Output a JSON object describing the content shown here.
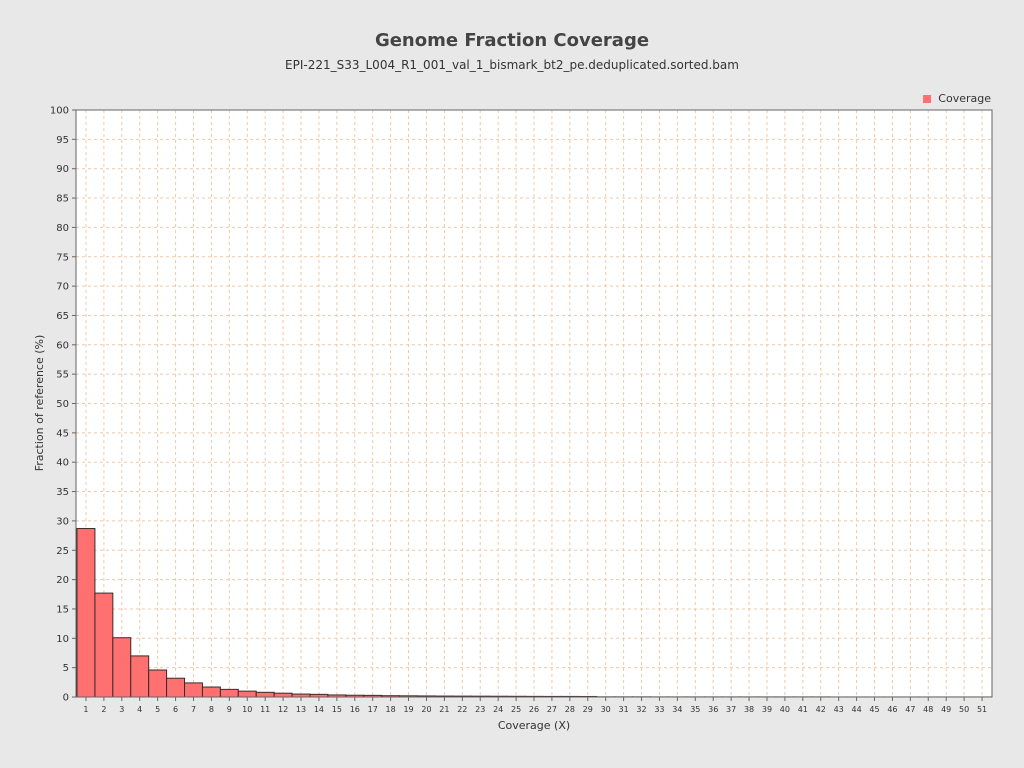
{
  "chart_data": {
    "type": "bar",
    "title": "Genome Fraction Coverage",
    "subtitle": "EPI-221_S33_L004_R1_001_val_1_bismark_bt2_pe.deduplicated.sorted.bam",
    "xlabel": "Coverage (X)",
    "ylabel": "Fraction of reference (%)",
    "ylim": [
      0,
      100
    ],
    "yticks": [
      0,
      5,
      10,
      15,
      20,
      25,
      30,
      35,
      40,
      45,
      50,
      55,
      60,
      65,
      70,
      75,
      80,
      85,
      90,
      95,
      100
    ],
    "grid": true,
    "legend_position": "top-right",
    "categories": [
      "1",
      "2",
      "3",
      "4",
      "5",
      "6",
      "7",
      "8",
      "9",
      "10",
      "11",
      "12",
      "13",
      "14",
      "15",
      "16",
      "17",
      "18",
      "19",
      "20",
      "21",
      "22",
      "23",
      "24",
      "25",
      "26",
      "27",
      "28",
      "29",
      "30",
      "31",
      "32",
      "33",
      "34",
      "35",
      "36",
      "37",
      "38",
      "39",
      "40",
      "41",
      "42",
      "43",
      "44",
      "45",
      "46",
      "47",
      "48",
      "49",
      "50",
      "51"
    ],
    "series": [
      {
        "name": "Coverage",
        "color": "#ff7070",
        "values": [
          28.7,
          17.7,
          10.1,
          7.0,
          4.6,
          3.2,
          2.4,
          1.7,
          1.3,
          1.0,
          0.8,
          0.65,
          0.5,
          0.45,
          0.35,
          0.3,
          0.28,
          0.22,
          0.2,
          0.18,
          0.16,
          0.15,
          0.14,
          0.13,
          0.12,
          0.11,
          0.1,
          0.1,
          0.09,
          0.03,
          0.03,
          0.03,
          0.02,
          0.02,
          0.02,
          0.02,
          0.02,
          0.02,
          0.02,
          0.02,
          0.02,
          0.02,
          0.01,
          0.01,
          0.01,
          0.01,
          0.01,
          0.01,
          0.01,
          0.01,
          0.01
        ]
      }
    ]
  }
}
